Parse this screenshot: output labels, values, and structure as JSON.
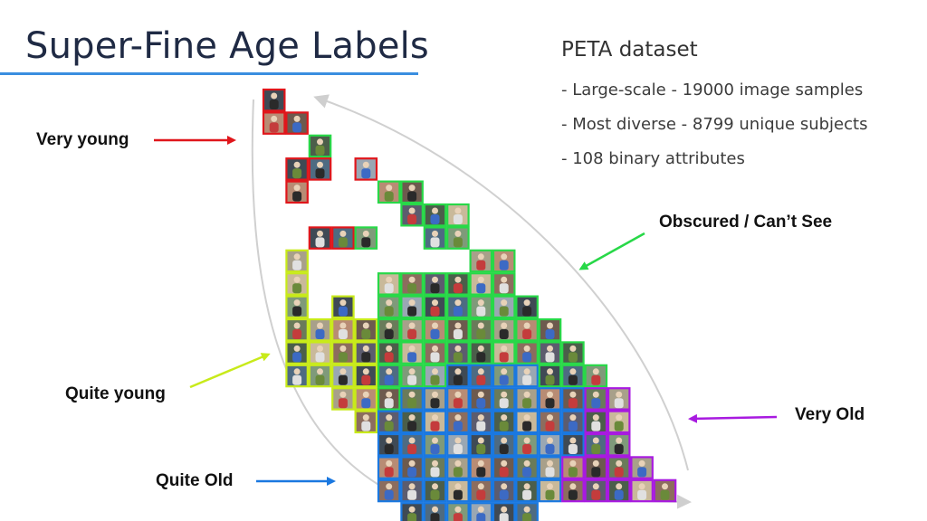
{
  "slide": {
    "title": "Super-Fine Age Labels",
    "dataset": {
      "title": "PETA dataset",
      "bullets": [
        "- Large-scale - 19000 image samples",
        "- Most diverse - 8799 unique subjects",
        "- 108 binary attributes"
      ]
    },
    "labels": {
      "very_young": "Very young",
      "obscured": "Obscured / Can’t See",
      "quite_young": "Quite young",
      "very_old": "Very Old",
      "quite_old": "Quite Old"
    },
    "colors": {
      "title_rule": "#3a8ee0",
      "very_young": "#e0161b",
      "obscured": "#28d848",
      "quite_young": "#c8ea1a",
      "very_old": "#a81ae0",
      "quite_old": "#1a78e0",
      "guide_line": "#cfcfcf"
    }
  }
}
